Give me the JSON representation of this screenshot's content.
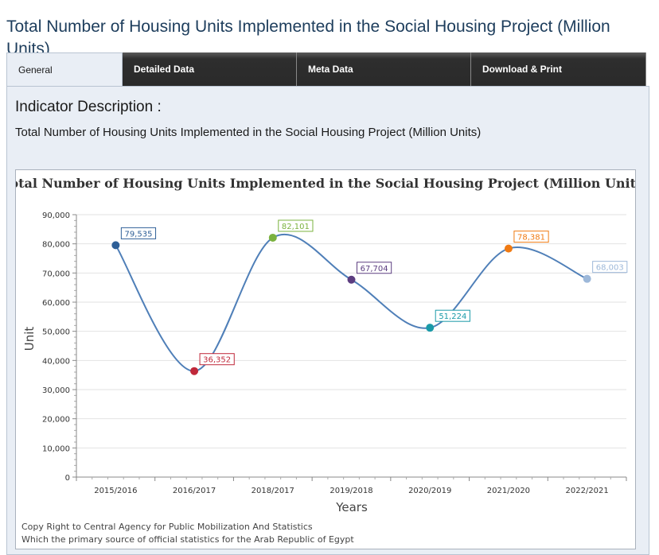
{
  "page": {
    "title": "Total Number of Housing Units Implemented in the Social Housing Project (Million Units)"
  },
  "tabs": [
    {
      "label": "General",
      "active": true
    },
    {
      "label": "Detailed Data",
      "active": false
    },
    {
      "label": "Meta Data",
      "active": false
    },
    {
      "label": "Download & Print",
      "active": false
    }
  ],
  "description": {
    "heading": "Indicator Description :",
    "text": "Total Number of Housing Units Implemented in the Social Housing Project (Million Units)"
  },
  "chart_data": {
    "type": "line",
    "title": "Total Number of Housing Units Implemented in the Social Housing Project (Million Units)",
    "xlabel": "Years",
    "ylabel": "Unit",
    "ylim": [
      0,
      90000
    ],
    "yticks": [
      0,
      10000,
      20000,
      30000,
      40000,
      50000,
      60000,
      70000,
      80000,
      90000
    ],
    "ytick_labels": [
      "0",
      "10,000",
      "20,000",
      "30,000",
      "40,000",
      "50,000",
      "60,000",
      "70,000",
      "80,000",
      "90,000"
    ],
    "grid": true,
    "line_color": "#4f7fb8",
    "categories": [
      "2015/2016",
      "2016/2017",
      "2018/2017",
      "2019/2018",
      "2020/2019",
      "2021/2020",
      "2022/2021"
    ],
    "values": [
      79535,
      36352,
      82101,
      67704,
      51224,
      78381,
      68003
    ],
    "data_labels": [
      "79,535",
      "36,352",
      "82,101",
      "67,704",
      "51,224",
      "78,381",
      "68,003"
    ],
    "point_colors": [
      "#2e5f97",
      "#c0283a",
      "#7bb23e",
      "#5c3d80",
      "#1a9aa8",
      "#f07a12",
      "#9db8d9"
    ]
  },
  "footer": {
    "line1": "Copy Right to Central Agency for Public Mobilization And Statistics",
    "line2": "Which the primary source of official statistics for the Arab Republic of Egypt"
  }
}
